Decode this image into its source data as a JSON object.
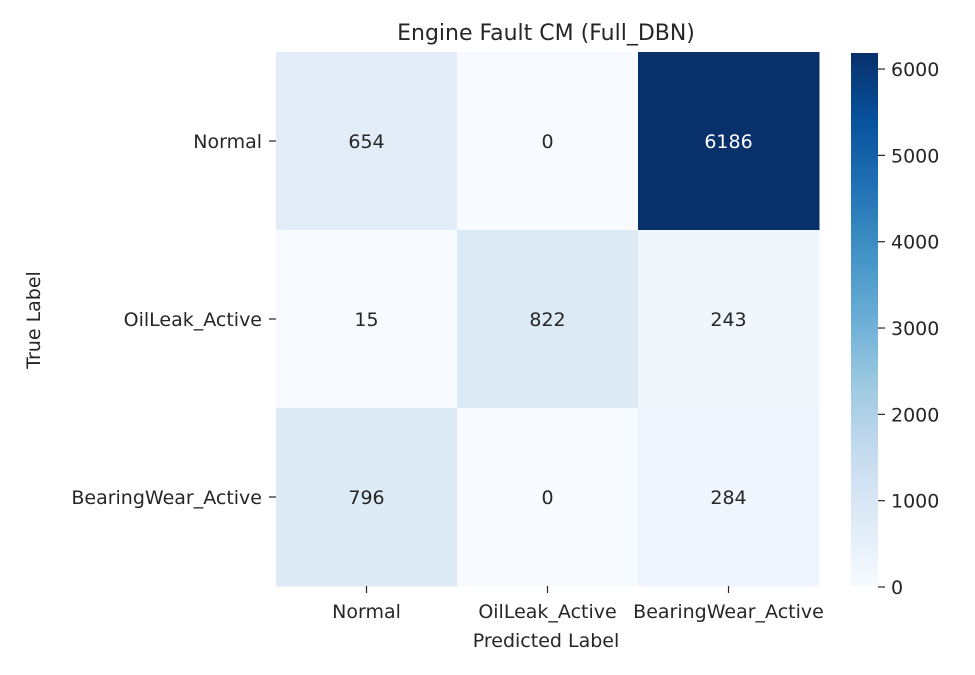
{
  "chart_data": {
    "type": "heatmap",
    "title": "Engine Fault CM (Full_DBN)",
    "xlabel": "Predicted Label",
    "ylabel": "True Label",
    "x_categories": [
      "Normal",
      "OilLeak_Active",
      "BearingWear_Active"
    ],
    "y_categories": [
      "Normal",
      "OilLeak_Active",
      "BearingWear_Active"
    ],
    "values": [
      [
        654,
        0,
        6186
      ],
      [
        15,
        822,
        243
      ],
      [
        796,
        0,
        284
      ]
    ],
    "colormap": "Blues",
    "color_range": [
      0,
      6186
    ],
    "colorbar_ticks": [
      0,
      1000,
      2000,
      3000,
      4000,
      5000,
      6000
    ],
    "colors": {
      "min": "#f7fbff",
      "max": "#08306b",
      "text_dark": "#262626",
      "text_light": "#ffffff"
    }
  }
}
